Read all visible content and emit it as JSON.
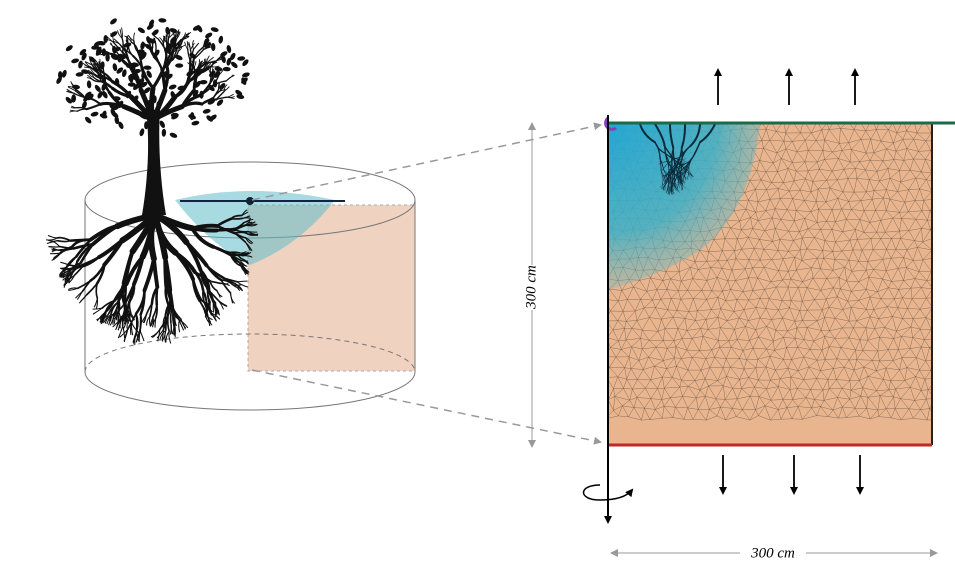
{
  "dimensions": {
    "height": "300 cm",
    "width": "300 cm"
  }
}
